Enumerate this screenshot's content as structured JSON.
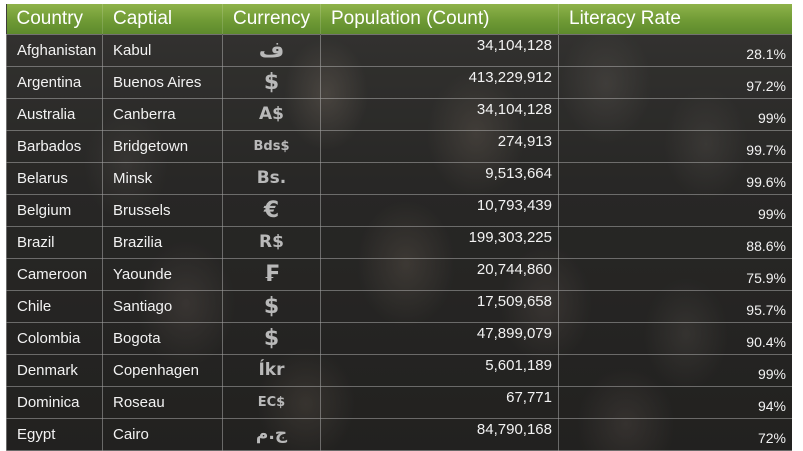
{
  "table": {
    "headers": {
      "country": "Country",
      "capital": "Captial",
      "currency": "Currency",
      "population": "Population (Count)",
      "literacy": "Literacy Rate"
    },
    "rows": [
      {
        "country": "Afghanistan",
        "capital": "Kabul",
        "currency": "ف",
        "population": "34,104,128",
        "literacy": "28.1%"
      },
      {
        "country": "Argentina",
        "capital": "Buenos Aires",
        "currency": "$",
        "population": "413,229,912",
        "literacy": "97.2%"
      },
      {
        "country": "Australia",
        "capital": "Canberra",
        "currency": "A$",
        "population": "34,104,128",
        "literacy": "99%"
      },
      {
        "country": "Barbados",
        "capital": "Bridgetown",
        "currency": "Bds$",
        "population": "274,913",
        "literacy": "99.7%"
      },
      {
        "country": "Belarus",
        "capital": "Minsk",
        "currency": "Bs.",
        "population": "9,513,664",
        "literacy": "99.6%"
      },
      {
        "country": "Belgium",
        "capital": "Brussels",
        "currency": "€",
        "population": "10,793,439",
        "literacy": "99%"
      },
      {
        "country": "Brazil",
        "capital": "Brazilia",
        "currency": "R$",
        "population": "199,303,225",
        "literacy": "88.6%"
      },
      {
        "country": "Cameroon",
        "capital": "Yaounde",
        "currency": "₣",
        "population": "20,744,860",
        "literacy": "75.9%"
      },
      {
        "country": "Chile",
        "capital": "Santiago",
        "currency": "$",
        "population": "17,509,658",
        "literacy": "95.7%"
      },
      {
        "country": "Colombia",
        "capital": "Bogota",
        "currency": "$",
        "population": "47,899,079",
        "literacy": "90.4%"
      },
      {
        "country": "Denmark",
        "capital": "Copenhagen",
        "currency": "Íkr",
        "population": "5,601,189",
        "literacy": "99%"
      },
      {
        "country": "Dominica",
        "capital": "Roseau",
        "currency": "EC$",
        "population": "67,771",
        "literacy": "94%"
      },
      {
        "country": "Egypt",
        "capital": "Cairo",
        "currency": "ج.م",
        "population": "84,790,168",
        "literacy": "72%"
      }
    ]
  },
  "colors": {
    "header_green": "#6f9a35",
    "header_text": "#ffffff",
    "cell_text": "#f2f2f2",
    "currency_symbol": "#b9b9b9",
    "grid_line": "#a0a0a0"
  }
}
